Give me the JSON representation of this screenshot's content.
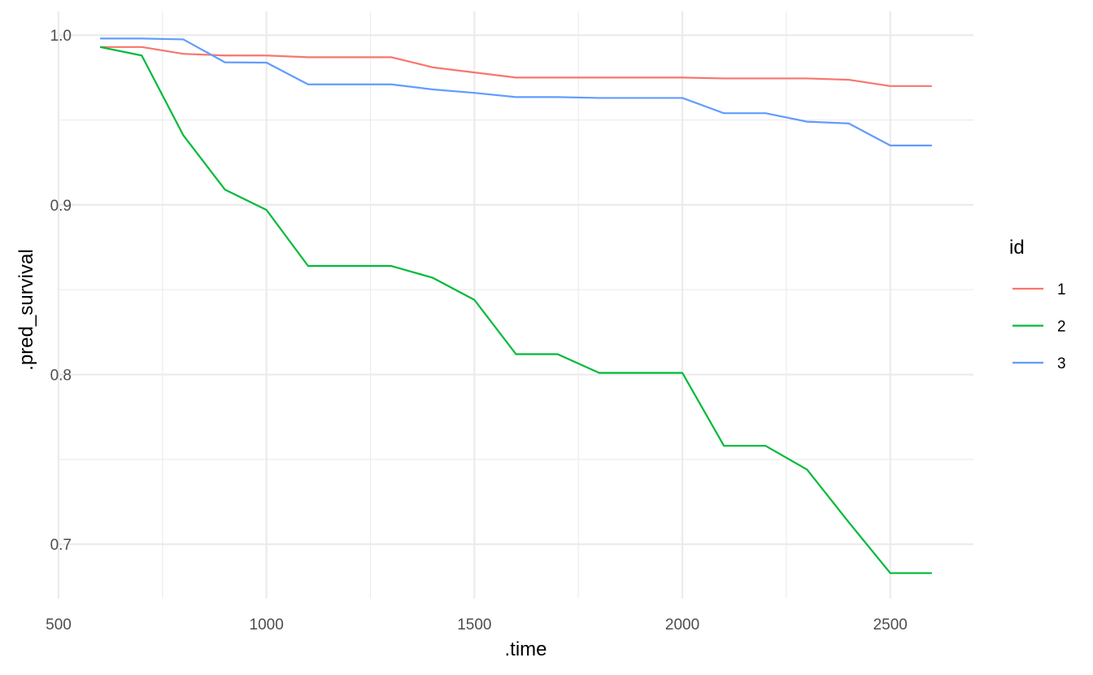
{
  "chart_data": {
    "type": "line",
    "title": "",
    "xlabel": ".time",
    "ylabel": ".pred_survival",
    "xlim": [
      500,
      2700
    ],
    "ylim": [
      0.668,
      1.014
    ],
    "x_ticks": [
      500,
      1000,
      1500,
      2000,
      2500
    ],
    "x_tick_labels": [
      "500",
      "1000",
      "1500",
      "2000",
      "2500"
    ],
    "y_ticks": [
      0.7,
      0.8,
      0.9,
      1.0
    ],
    "y_tick_labels": [
      "0.7",
      "0.8",
      "0.9",
      "1.0"
    ],
    "grid": true,
    "legend": {
      "title": "id",
      "position": "right"
    },
    "x": [
      600,
      700,
      800,
      900,
      1000,
      1100,
      1200,
      1300,
      1400,
      1500,
      1600,
      1700,
      1800,
      1900,
      2000,
      2100,
      2200,
      2300,
      2400,
      2500,
      2600
    ],
    "series": [
      {
        "name": "1",
        "color": "#F8766D",
        "values": [
          0.993,
          0.993,
          0.989,
          0.988,
          0.988,
          0.987,
          0.987,
          0.987,
          0.981,
          0.978,
          0.975,
          0.975,
          0.975,
          0.975,
          0.975,
          0.9745,
          0.9745,
          0.9745,
          0.9737,
          0.97,
          0.97
        ]
      },
      {
        "name": "2",
        "color": "#00BA38",
        "values": [
          0.993,
          0.988,
          0.941,
          0.909,
          0.897,
          0.864,
          0.864,
          0.864,
          0.857,
          0.844,
          0.812,
          0.812,
          0.801,
          0.801,
          0.801,
          0.758,
          0.758,
          0.744,
          0.713,
          0.683,
          0.683
        ]
      },
      {
        "name": "3",
        "color": "#619CFF",
        "values": [
          0.998,
          0.998,
          0.9975,
          0.984,
          0.9838,
          0.971,
          0.971,
          0.971,
          0.968,
          0.966,
          0.9635,
          0.9635,
          0.963,
          0.963,
          0.963,
          0.954,
          0.954,
          0.949,
          0.948,
          0.935,
          0.935
        ]
      }
    ]
  }
}
